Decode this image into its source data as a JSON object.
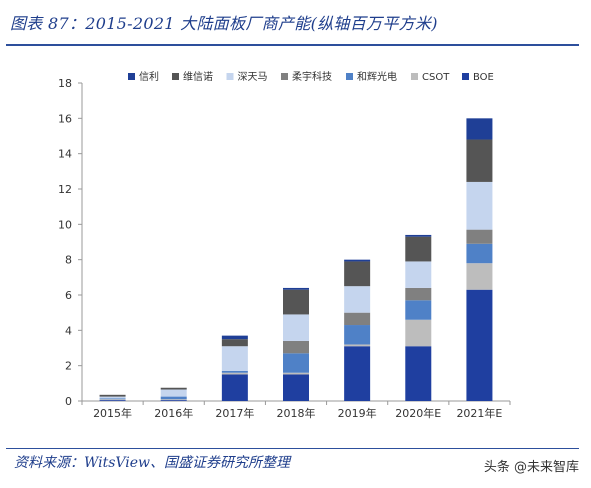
{
  "page": {
    "title": "图表 87：2015-2021 大陆面板厂商产能(纵轴百万平方米)",
    "source": "资料来源：WitsView、国盛证券研究所整理",
    "watermark": "头条 @未来智库"
  },
  "chart_data": {
    "type": "bar",
    "stacked": true,
    "title": "",
    "xlabel": "",
    "ylabel": "",
    "categories": [
      "2015年",
      "2016年",
      "2017年",
      "2018年",
      "2019年",
      "2020年E",
      "2021年E"
    ],
    "ylim": [
      0,
      18
    ],
    "yticks": [
      0,
      2,
      4,
      6,
      8,
      10,
      12,
      14,
      16,
      18
    ],
    "grid": false,
    "legend_position": "top",
    "series": [
      {
        "name": "BOE",
        "color": "#1f3fa0",
        "values": [
          0.05,
          0.05,
          1.5,
          1.5,
          3.1,
          3.1,
          6.3
        ]
      },
      {
        "name": "CSOT",
        "color": "#bdbdbd",
        "values": [
          0.05,
          0.05,
          0.1,
          0.1,
          0.1,
          1.5,
          1.5
        ]
      },
      {
        "name": "和辉光电",
        "color": "#4f81c7",
        "values": [
          0.05,
          0.15,
          0.1,
          1.1,
          1.1,
          1.1,
          1.1
        ]
      },
      {
        "name": "柔宇科技",
        "color": "#808080",
        "values": [
          0.0,
          0.0,
          0.0,
          0.7,
          0.7,
          0.7,
          0.8
        ]
      },
      {
        "name": "深天马",
        "color": "#c5d5ee",
        "values": [
          0.1,
          0.4,
          1.4,
          1.5,
          1.5,
          1.5,
          2.7
        ]
      },
      {
        "name": "维信诺",
        "color": "#555555",
        "values": [
          0.1,
          0.1,
          0.4,
          1.4,
          1.4,
          1.4,
          2.4
        ]
      },
      {
        "name": "信利",
        "color": "#1f3f96",
        "values": [
          0.0,
          0.0,
          0.2,
          0.1,
          0.1,
          0.1,
          1.2
        ]
      }
    ],
    "legend_order": [
      "信利",
      "维信诺",
      "深天马",
      "柔宇科技",
      "和辉光电",
      "CSOT",
      "BOE"
    ]
  }
}
